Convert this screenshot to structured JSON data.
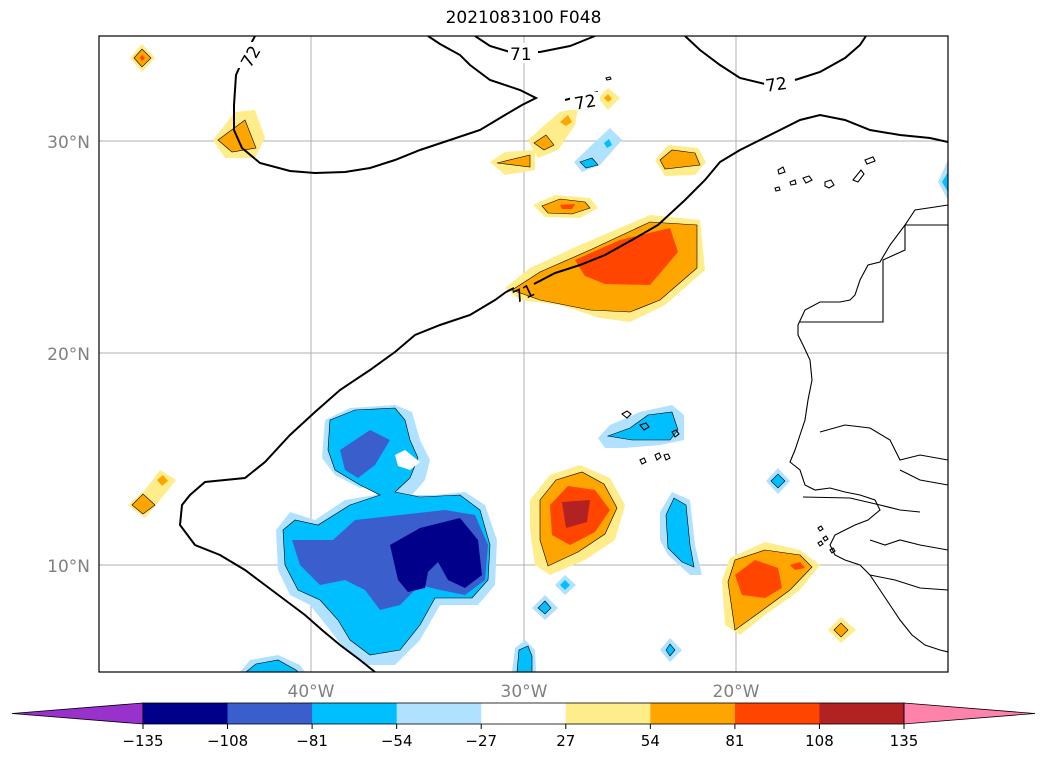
{
  "title": "2021083100 F048",
  "axes": {
    "lat_labels": [
      "30°N",
      "20°N",
      "10°N"
    ],
    "lon_labels": [
      "40°W",
      "30°W",
      "20°W"
    ]
  },
  "contour_labels": [
    "72",
    "71",
    "72",
    "72",
    "71"
  ],
  "colorbar": {
    "ticks": [
      "−135",
      "−108",
      "−81",
      "−54",
      "−27",
      "27",
      "54",
      "81",
      "108",
      "135"
    ],
    "colors": [
      "#9932CC",
      "#00008B",
      "#3A5FCD",
      "#00BFFF",
      "#B0E2FF",
      "#FFFFFF",
      "#FFEC8B",
      "#FFA500",
      "#FF4500",
      "#B22222",
      "#FF82AB"
    ],
    "extend": "both"
  }
}
